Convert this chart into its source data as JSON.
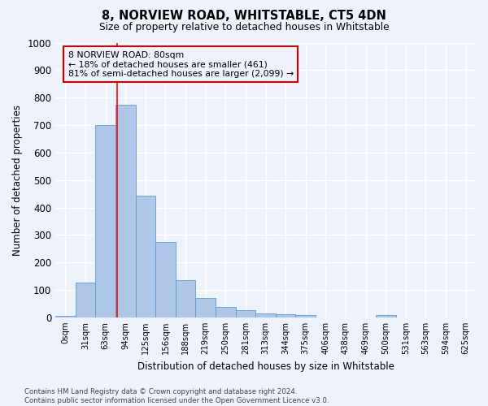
{
  "title": "8, NORVIEW ROAD, WHITSTABLE, CT5 4DN",
  "subtitle": "Size of property relative to detached houses in Whitstable",
  "xlabel": "Distribution of detached houses by size in Whitstable",
  "ylabel": "Number of detached properties",
  "categories": [
    "0sqm",
    "31sqm",
    "63sqm",
    "94sqm",
    "125sqm",
    "156sqm",
    "188sqm",
    "219sqm",
    "250sqm",
    "281sqm",
    "313sqm",
    "344sqm",
    "375sqm",
    "406sqm",
    "438sqm",
    "469sqm",
    "500sqm",
    "531sqm",
    "563sqm",
    "594sqm",
    "625sqm"
  ],
  "values": [
    5,
    128,
    700,
    775,
    443,
    275,
    135,
    70,
    38,
    25,
    15,
    13,
    10,
    0,
    0,
    0,
    8,
    0,
    0,
    0,
    0
  ],
  "bar_color": "#aec6e8",
  "bar_edge_color": "#5b9bd5",
  "annotation_line_bin": 2.58,
  "annotation_text_line1": "8 NORVIEW ROAD: 80sqm",
  "annotation_text_line2": "← 18% of detached houses are smaller (461)",
  "annotation_text_line3": "81% of semi-detached houses are larger (2,099) →",
  "annotation_box_color": "#cc0000",
  "footer_line1": "Contains HM Land Registry data © Crown copyright and database right 2024.",
  "footer_line2": "Contains public sector information licensed under the Open Government Licence v3.0.",
  "ylim": [
    0,
    1000
  ],
  "yticks": [
    0,
    100,
    200,
    300,
    400,
    500,
    600,
    700,
    800,
    900,
    1000
  ],
  "figsize": [
    6.0,
    5.0
  ],
  "dpi": 100,
  "bg_color": "#eef2fa",
  "grid_color": "#ffffff"
}
